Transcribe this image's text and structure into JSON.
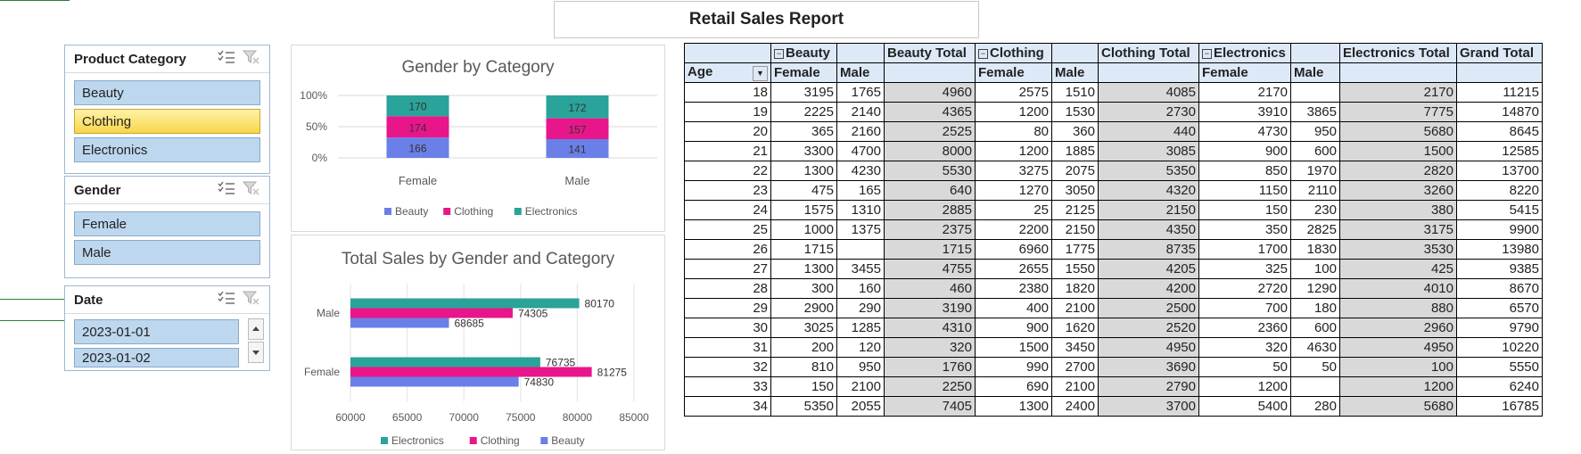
{
  "report_title": "Retail Sales Report",
  "slicers": {
    "product_category": {
      "title": "Product Category",
      "items": [
        {
          "label": "Beauty",
          "selected": false
        },
        {
          "label": "Clothing",
          "selected": true
        },
        {
          "label": "Electronics",
          "selected": false
        }
      ]
    },
    "gender": {
      "title": "Gender",
      "items": [
        {
          "label": "Female",
          "selected": false
        },
        {
          "label": "Male",
          "selected": false
        }
      ]
    },
    "date": {
      "title": "Date",
      "items": [
        {
          "label": "2023-01-01",
          "selected": false
        },
        {
          "label": "2023-01-02",
          "selected": false
        }
      ]
    }
  },
  "chart_data": [
    {
      "type": "bar",
      "stacked": "percent",
      "title": "Gender by Category",
      "categories": [
        "Female",
        "Male"
      ],
      "series": [
        {
          "name": "Beauty",
          "values": [
            166,
            141
          ],
          "color": "#6b7fe8"
        },
        {
          "name": "Clothing",
          "values": [
            174,
            157
          ],
          "color": "#e8168a"
        },
        {
          "name": "Electronics",
          "values": [
            170,
            172
          ],
          "color": "#2aa39a"
        }
      ],
      "yticks": [
        "0%",
        "50%",
        "100%"
      ],
      "legend": "bottom"
    },
    {
      "type": "bar",
      "orientation": "horizontal",
      "title": "Total Sales by Gender and Category",
      "categories": [
        "Male",
        "Female"
      ],
      "series": [
        {
          "name": "Electronics",
          "values": [
            80170,
            76735
          ],
          "color": "#2aa39a"
        },
        {
          "name": "Clothing",
          "values": [
            74305,
            81275
          ],
          "color": "#e8168a"
        },
        {
          "name": "Beauty",
          "values": [
            68685,
            74830
          ],
          "color": "#6b7fe8"
        }
      ],
      "xlim": [
        60000,
        85000
      ],
      "xticks": [
        60000,
        65000,
        70000,
        75000,
        80000,
        85000
      ],
      "legend": "bottom"
    }
  ],
  "pivot": {
    "group_headers": [
      "Beauty",
      "Beauty Total",
      "Clothing",
      "Clothing Total",
      "Electronics",
      "Electronics Total",
      "Grand Total"
    ],
    "sub_headers": {
      "age": "Age",
      "female": "Female",
      "male": "Male"
    },
    "rows": [
      {
        "age": "18",
        "bf": "3195",
        "bm": "1765",
        "bt": "4960",
        "cf": "2575",
        "cm": "1510",
        "ct": "4085",
        "ef": "2170",
        "em": "",
        "et": "2170",
        "gt": "11215"
      },
      {
        "age": "19",
        "bf": "2225",
        "bm": "2140",
        "bt": "4365",
        "cf": "1200",
        "cm": "1530",
        "ct": "2730",
        "ef": "3910",
        "em": "3865",
        "et": "7775",
        "gt": "14870"
      },
      {
        "age": "20",
        "bf": "365",
        "bm": "2160",
        "bt": "2525",
        "cf": "80",
        "cm": "360",
        "ct": "440",
        "ef": "4730",
        "em": "950",
        "et": "5680",
        "gt": "8645"
      },
      {
        "age": "21",
        "bf": "3300",
        "bm": "4700",
        "bt": "8000",
        "cf": "1200",
        "cm": "1885",
        "ct": "3085",
        "ef": "900",
        "em": "600",
        "et": "1500",
        "gt": "12585"
      },
      {
        "age": "22",
        "bf": "1300",
        "bm": "4230",
        "bt": "5530",
        "cf": "3275",
        "cm": "2075",
        "ct": "5350",
        "ef": "850",
        "em": "1970",
        "et": "2820",
        "gt": "13700"
      },
      {
        "age": "23",
        "bf": "475",
        "bm": "165",
        "bt": "640",
        "cf": "1270",
        "cm": "3050",
        "ct": "4320",
        "ef": "1150",
        "em": "2110",
        "et": "3260",
        "gt": "8220"
      },
      {
        "age": "24",
        "bf": "1575",
        "bm": "1310",
        "bt": "2885",
        "cf": "25",
        "cm": "2125",
        "ct": "2150",
        "ef": "150",
        "em": "230",
        "et": "380",
        "gt": "5415"
      },
      {
        "age": "25",
        "bf": "1000",
        "bm": "1375",
        "bt": "2375",
        "cf": "2200",
        "cm": "2150",
        "ct": "4350",
        "ef": "350",
        "em": "2825",
        "et": "3175",
        "gt": "9900"
      },
      {
        "age": "26",
        "bf": "1715",
        "bm": "",
        "bt": "1715",
        "cf": "6960",
        "cm": "1775",
        "ct": "8735",
        "ef": "1700",
        "em": "1830",
        "et": "3530",
        "gt": "13980"
      },
      {
        "age": "27",
        "bf": "1300",
        "bm": "3455",
        "bt": "4755",
        "cf": "2655",
        "cm": "1550",
        "ct": "4205",
        "ef": "325",
        "em": "100",
        "et": "425",
        "gt": "9385"
      },
      {
        "age": "28",
        "bf": "300",
        "bm": "160",
        "bt": "460",
        "cf": "2380",
        "cm": "1820",
        "ct": "4200",
        "ef": "2720",
        "em": "1290",
        "et": "4010",
        "gt": "8670"
      },
      {
        "age": "29",
        "bf": "2900",
        "bm": "290",
        "bt": "3190",
        "cf": "400",
        "cm": "2100",
        "ct": "2500",
        "ef": "700",
        "em": "180",
        "et": "880",
        "gt": "6570"
      },
      {
        "age": "30",
        "bf": "3025",
        "bm": "1285",
        "bt": "4310",
        "cf": "900",
        "cm": "1620",
        "ct": "2520",
        "ef": "2360",
        "em": "600",
        "et": "2960",
        "gt": "9790"
      },
      {
        "age": "31",
        "bf": "200",
        "bm": "120",
        "bt": "320",
        "cf": "1500",
        "cm": "3450",
        "ct": "4950",
        "ef": "320",
        "em": "4630",
        "et": "4950",
        "gt": "10220"
      },
      {
        "age": "32",
        "bf": "810",
        "bm": "950",
        "bt": "1760",
        "cf": "990",
        "cm": "2700",
        "ct": "3690",
        "ef": "50",
        "em": "50",
        "et": "100",
        "gt": "5550"
      },
      {
        "age": "33",
        "bf": "150",
        "bm": "2100",
        "bt": "2250",
        "cf": "690",
        "cm": "2100",
        "ct": "2790",
        "ef": "1200",
        "em": "",
        "et": "1200",
        "gt": "6240"
      },
      {
        "age": "34",
        "bf": "5350",
        "bm": "2055",
        "bt": "7405",
        "cf": "1300",
        "cm": "2400",
        "ct": "3700",
        "ef": "5400",
        "em": "280",
        "et": "5680",
        "gt": "16785"
      }
    ]
  }
}
